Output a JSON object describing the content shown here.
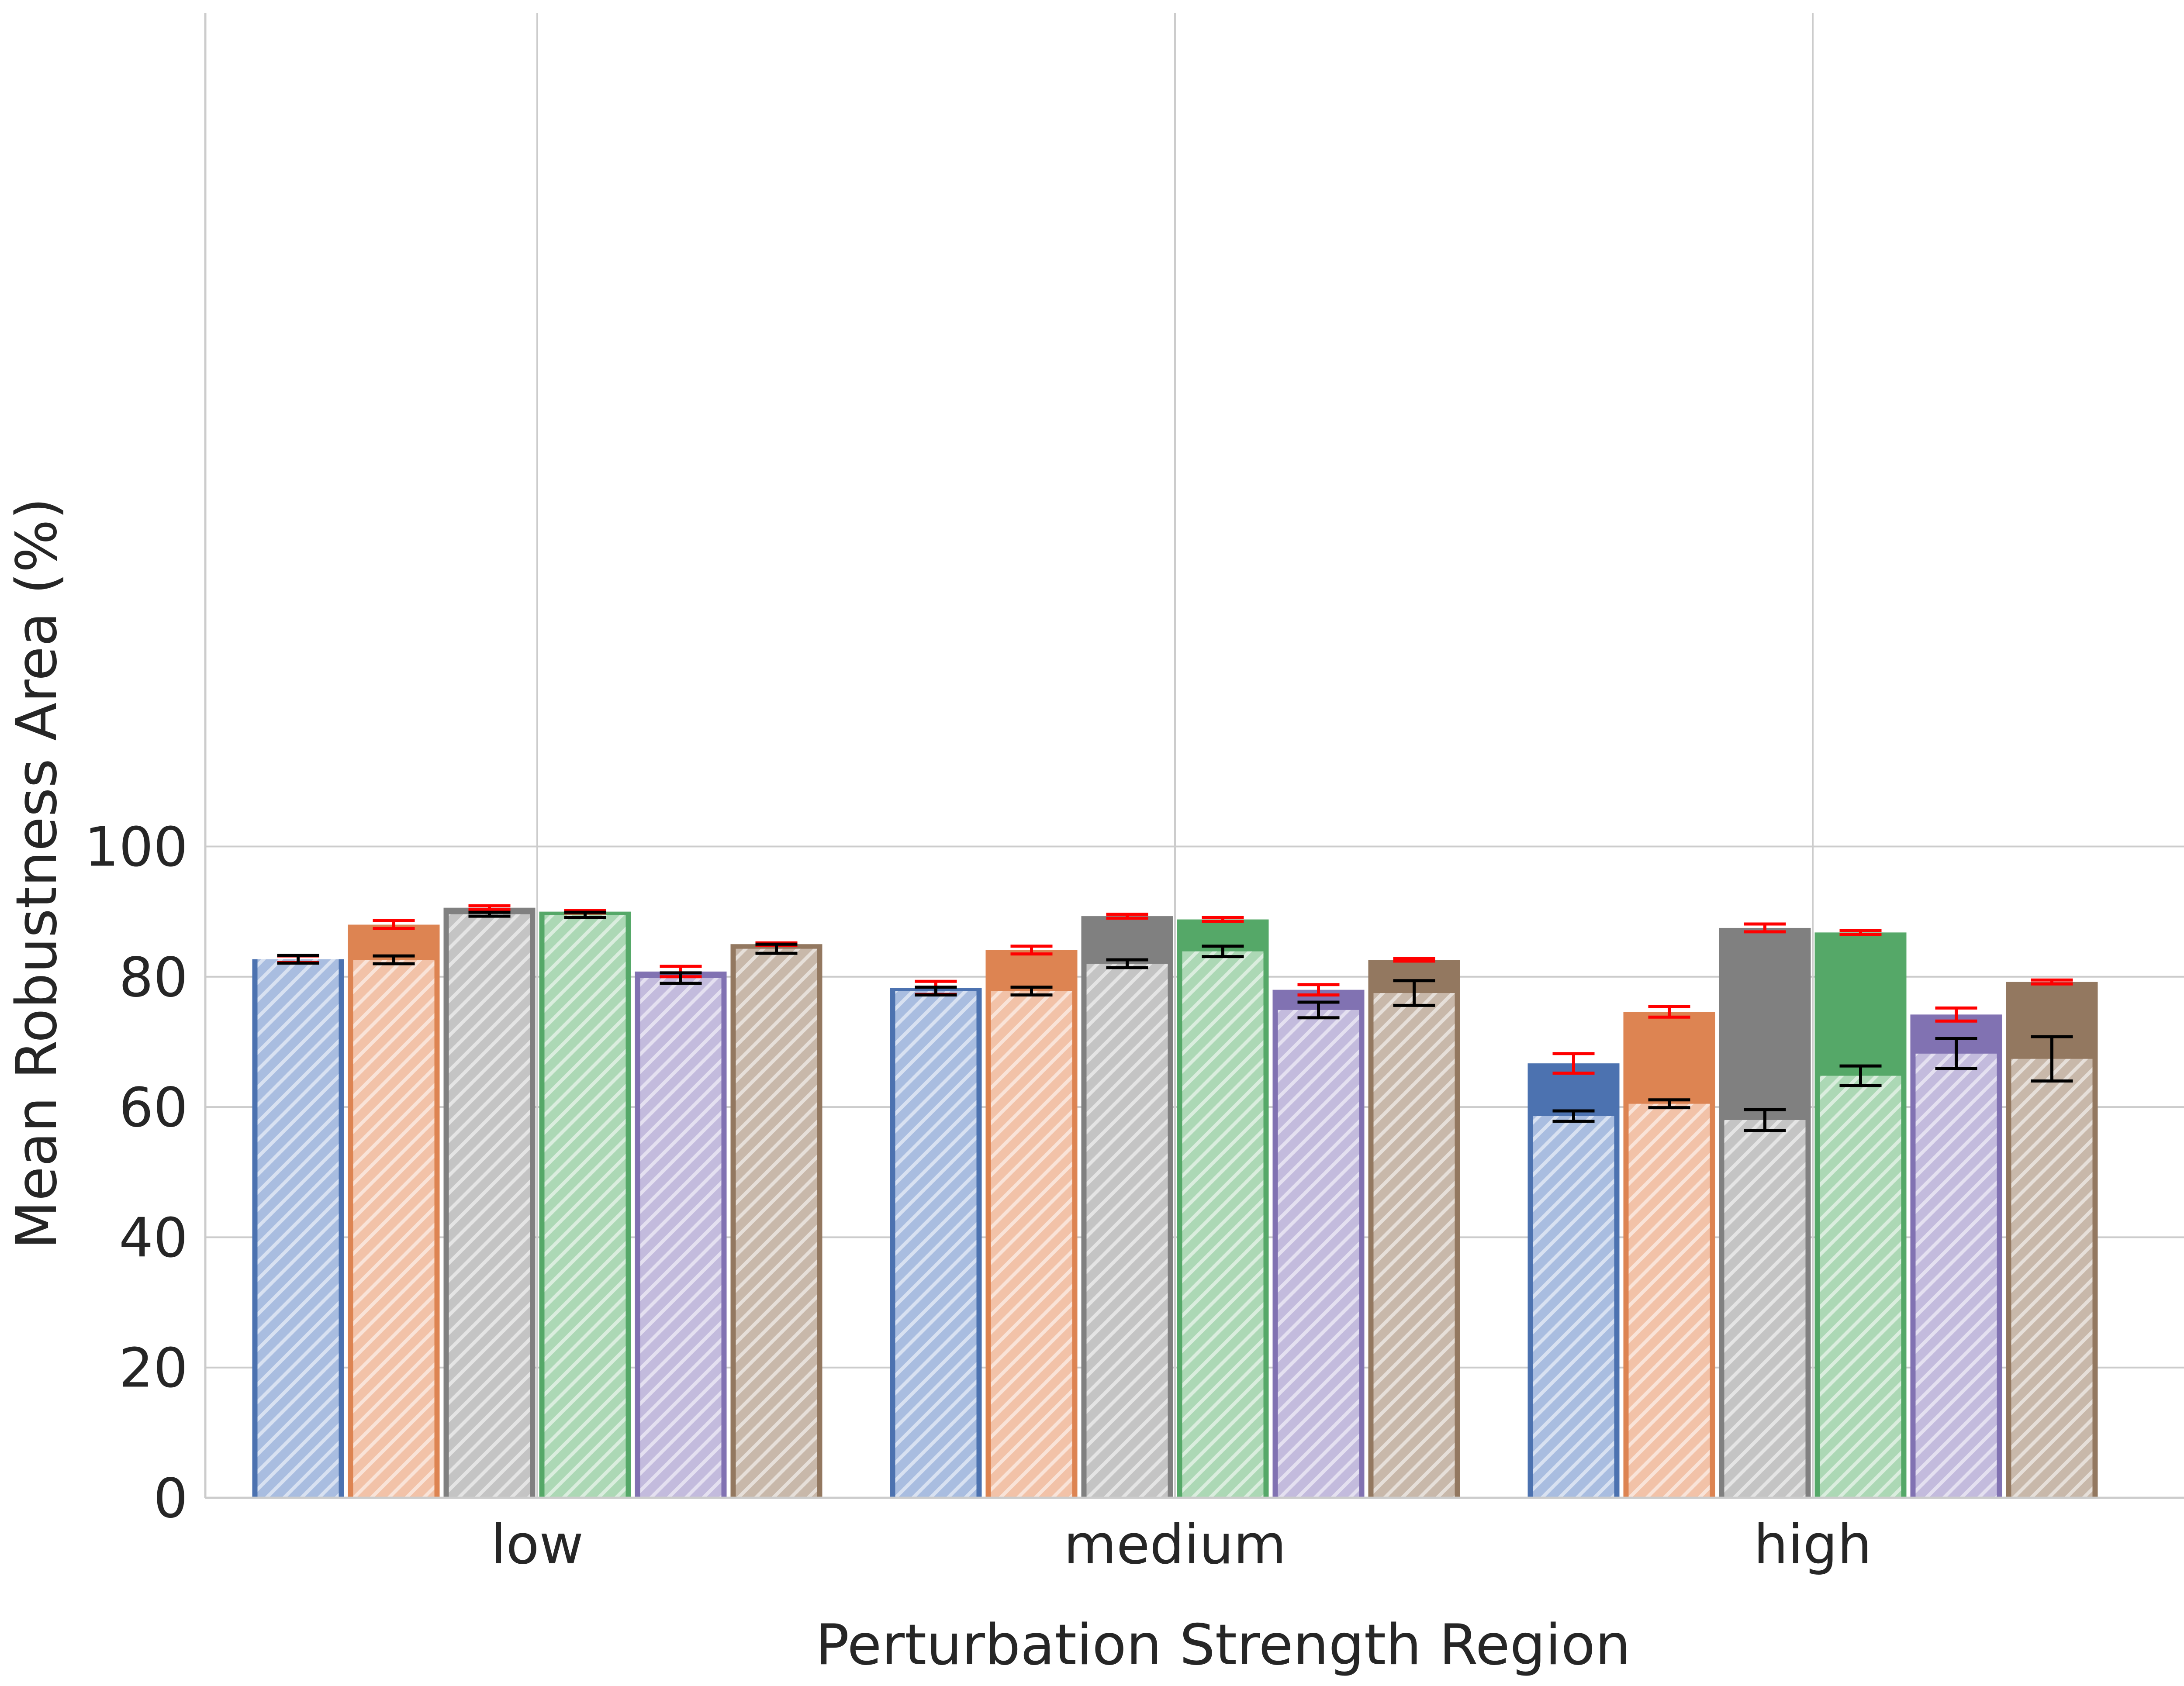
{
  "chart_data": {
    "type": "bar",
    "title": "",
    "xlabel": "Perturbation Strength Region",
    "ylabel": "Mean Robustness Area (%)",
    "ylim": [
      0,
      114
    ],
    "yticks": [
      0,
      20,
      40,
      60,
      80,
      100
    ],
    "grid": true,
    "categories": [
      "low",
      "medium",
      "high"
    ],
    "series": [
      {
        "color": "#4c72b0",
        "light": "#a9bde0",
        "values": [
          82.7,
          78.3,
          66.7
        ],
        "values_err": [
          0.5,
          1.0,
          1.5
        ],
        "hatched": [
          82.7,
          77.8,
          58.6
        ],
        "hatched_err": [
          0.6,
          0.6,
          0.8
        ]
      },
      {
        "color": "#dd8452",
        "light": "#f2c2a8",
        "values": [
          88.0,
          84.1,
          74.6
        ],
        "values_err": [
          0.6,
          0.6,
          0.8
        ],
        "hatched": [
          82.6,
          77.8,
          60.5
        ],
        "hatched_err": [
          0.6,
          0.6,
          0.6
        ]
      },
      {
        "color": "#808080",
        "light": "#c4c4c4",
        "values": [
          90.6,
          89.3,
          87.5
        ],
        "values_err": [
          0.3,
          0.3,
          0.6
        ],
        "hatched": [
          89.6,
          82.0,
          58.0
        ],
        "hatched_err": [
          0.3,
          0.6,
          1.6
        ]
      },
      {
        "color": "#55a868",
        "light": "#acd8b5",
        "values": [
          90.0,
          88.8,
          86.8
        ],
        "values_err": [
          0.2,
          0.3,
          0.3
        ],
        "hatched": [
          89.5,
          83.9,
          64.8
        ],
        "hatched_err": [
          0.4,
          0.8,
          1.5
        ]
      },
      {
        "color": "#8172b2",
        "light": "#c3bbdd",
        "values": [
          80.8,
          78.0,
          74.2
        ],
        "values_err": [
          0.8,
          0.8,
          1.0
        ],
        "hatched": [
          79.8,
          74.9,
          68.2
        ],
        "hatched_err": [
          0.8,
          1.2,
          2.3
        ]
      },
      {
        "color": "#937860",
        "light": "#c8b8aa",
        "values": [
          85.0,
          82.6,
          79.2
        ],
        "values_err": [
          0.2,
          0.2,
          0.3
        ],
        "hatched": [
          84.3,
          77.5,
          67.4
        ],
        "hatched_err": [
          0.7,
          1.9,
          3.4
        ]
      }
    ]
  }
}
